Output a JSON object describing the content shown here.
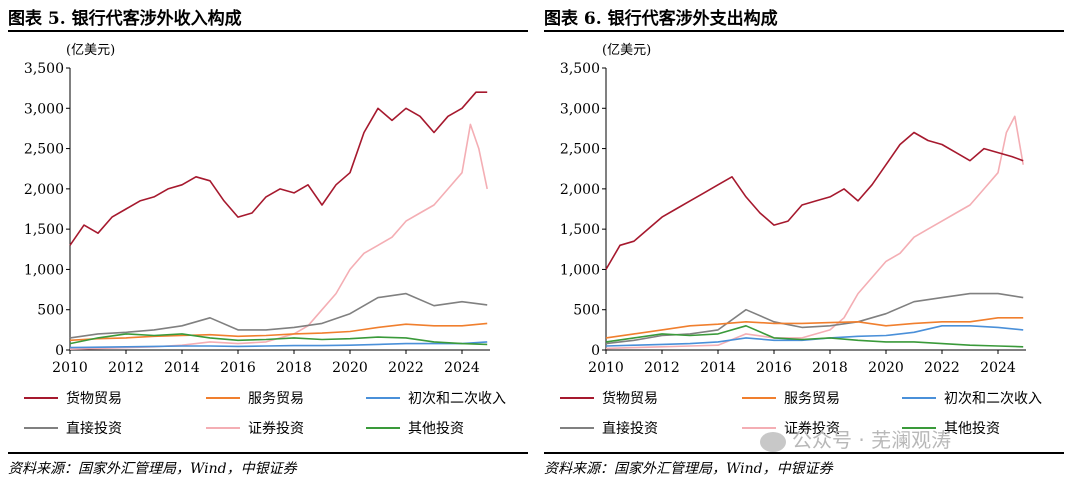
{
  "chart_data": [
    {
      "type": "line",
      "title": "图表 5. 银行代客涉外收入构成",
      "ylabel": "(亿美元)",
      "source": "资料来源：国家外汇管理局，Wind，中银证券",
      "ylim": [
        0,
        3500
      ],
      "xlim": [
        2010,
        2025
      ],
      "yticks": [
        {
          "v": 0,
          "label": "0"
        },
        {
          "v": 500,
          "label": "500"
        },
        {
          "v": 1000,
          "label": "1,000"
        },
        {
          "v": 1500,
          "label": "1,500"
        },
        {
          "v": 2000,
          "label": "2,000"
        },
        {
          "v": 2500,
          "label": "2,500"
        },
        {
          "v": 3000,
          "label": "3,000"
        },
        {
          "v": 3500,
          "label": "3,500"
        }
      ],
      "xticks": [
        2010,
        2012,
        2014,
        2016,
        2018,
        2020,
        2022,
        2024
      ],
      "legend_position": "bottom",
      "series": [
        {
          "name": "货物贸易",
          "color": "#A6192E",
          "x": [
            2010.0,
            2010.5,
            2011.0,
            2011.5,
            2012.0,
            2012.5,
            2013.0,
            2013.5,
            2014.0,
            2014.5,
            2015.0,
            2015.5,
            2016.0,
            2016.5,
            2017.0,
            2017.5,
            2018.0,
            2018.5,
            2019.0,
            2019.5,
            2020.0,
            2020.5,
            2021.0,
            2021.5,
            2022.0,
            2022.5,
            2023.0,
            2023.5,
            2024.0,
            2024.5,
            2024.9
          ],
          "y": [
            1300,
            1550,
            1450,
            1650,
            1750,
            1850,
            1900,
            2000,
            2050,
            2150,
            2100,
            1850,
            1650,
            1700,
            1900,
            2000,
            1950,
            2050,
            1800,
            2050,
            2200,
            2700,
            3000,
            2850,
            3000,
            2900,
            2700,
            2900,
            3000,
            3200,
            3200
          ]
        },
        {
          "name": "服务贸易",
          "color": "#F07F2E",
          "x": [
            2010.0,
            2011.0,
            2012.0,
            2013.0,
            2014.0,
            2015.0,
            2016.0,
            2017.0,
            2018.0,
            2019.0,
            2020.0,
            2021.0,
            2022.0,
            2023.0,
            2024.0,
            2024.9
          ],
          "y": [
            120,
            140,
            150,
            170,
            180,
            190,
            170,
            180,
            200,
            210,
            230,
            280,
            320,
            300,
            300,
            330
          ]
        },
        {
          "name": "初次和二次收入",
          "color": "#4A90D9",
          "x": [
            2010.0,
            2011.0,
            2012.0,
            2013.0,
            2014.0,
            2015.0,
            2016.0,
            2017.0,
            2018.0,
            2019.0,
            2020.0,
            2021.0,
            2022.0,
            2023.0,
            2024.0,
            2024.9
          ],
          "y": [
            30,
            35,
            40,
            45,
            50,
            50,
            45,
            50,
            55,
            55,
            60,
            70,
            80,
            80,
            80,
            100
          ]
        },
        {
          "name": "直接投资",
          "color": "#808080",
          "x": [
            2010.0,
            2011.0,
            2012.0,
            2013.0,
            2014.0,
            2015.0,
            2016.0,
            2017.0,
            2018.0,
            2019.0,
            2020.0,
            2021.0,
            2022.0,
            2023.0,
            2024.0,
            2024.9
          ],
          "y": [
            150,
            200,
            220,
            250,
            300,
            400,
            250,
            250,
            280,
            330,
            450,
            650,
            700,
            550,
            600,
            560
          ]
        },
        {
          "name": "证券投资",
          "color": "#F4AEB4",
          "x": [
            2010.0,
            2011.0,
            2012.0,
            2013.0,
            2014.0,
            2015.0,
            2016.0,
            2017.0,
            2018.0,
            2018.5,
            2019.0,
            2019.5,
            2020.0,
            2020.5,
            2021.0,
            2021.5,
            2022.0,
            2022.5,
            2023.0,
            2023.5,
            2024.0,
            2024.3,
            2024.6,
            2024.9
          ],
          "y": [
            10,
            20,
            30,
            40,
            60,
            100,
            80,
            100,
            200,
            300,
            500,
            700,
            1000,
            1200,
            1300,
            1400,
            1600,
            1700,
            1800,
            2000,
            2200,
            2800,
            2500,
            2000
          ]
        },
        {
          "name": "其他投资",
          "color": "#3A9A3A",
          "x": [
            2010.0,
            2011.0,
            2012.0,
            2013.0,
            2014.0,
            2015.0,
            2016.0,
            2017.0,
            2018.0,
            2019.0,
            2020.0,
            2021.0,
            2022.0,
            2023.0,
            2024.0,
            2024.9
          ],
          "y": [
            80,
            150,
            200,
            180,
            200,
            150,
            120,
            130,
            150,
            130,
            140,
            160,
            150,
            100,
            80,
            70
          ]
        }
      ]
    },
    {
      "type": "line",
      "title": "图表 6. 银行代客涉外支出构成",
      "ylabel": "(亿美元)",
      "source": "资料来源：国家外汇管理局，Wind，中银证券",
      "ylim": [
        0,
        3500
      ],
      "xlim": [
        2010,
        2025
      ],
      "yticks": [
        {
          "v": 0,
          "label": "0"
        },
        {
          "v": 500,
          "label": "500"
        },
        {
          "v": 1000,
          "label": "1,000"
        },
        {
          "v": 1500,
          "label": "1,500"
        },
        {
          "v": 2000,
          "label": "2,000"
        },
        {
          "v": 2500,
          "label": "2,500"
        },
        {
          "v": 3000,
          "label": "3,000"
        },
        {
          "v": 3500,
          "label": "3,500"
        }
      ],
      "xticks": [
        2010,
        2012,
        2014,
        2016,
        2018,
        2020,
        2022,
        2024
      ],
      "legend_position": "bottom",
      "series": [
        {
          "name": "货物贸易",
          "color": "#A6192E",
          "x": [
            2010.0,
            2010.5,
            2011.0,
            2011.5,
            2012.0,
            2012.5,
            2013.0,
            2013.5,
            2014.0,
            2014.5,
            2015.0,
            2015.5,
            2016.0,
            2016.5,
            2017.0,
            2017.5,
            2018.0,
            2018.5,
            2019.0,
            2019.5,
            2020.0,
            2020.5,
            2021.0,
            2021.5,
            2022.0,
            2022.5,
            2023.0,
            2023.5,
            2024.0,
            2024.5,
            2024.9
          ],
          "y": [
            1000,
            1300,
            1350,
            1500,
            1650,
            1750,
            1850,
            1950,
            2050,
            2150,
            1900,
            1700,
            1550,
            1600,
            1800,
            1850,
            1900,
            2000,
            1850,
            2050,
            2300,
            2550,
            2700,
            2600,
            2550,
            2450,
            2350,
            2500,
            2450,
            2400,
            2350
          ]
        },
        {
          "name": "服务贸易",
          "color": "#F07F2E",
          "x": [
            2010.0,
            2011.0,
            2012.0,
            2013.0,
            2014.0,
            2015.0,
            2016.0,
            2017.0,
            2018.0,
            2019.0,
            2020.0,
            2021.0,
            2022.0,
            2023.0,
            2024.0,
            2024.9
          ],
          "y": [
            150,
            200,
            250,
            300,
            320,
            350,
            330,
            330,
            340,
            350,
            300,
            330,
            350,
            350,
            400,
            400
          ]
        },
        {
          "name": "初次和二次收入",
          "color": "#4A90D9",
          "x": [
            2010.0,
            2011.0,
            2012.0,
            2013.0,
            2014.0,
            2015.0,
            2016.0,
            2017.0,
            2018.0,
            2019.0,
            2020.0,
            2021.0,
            2022.0,
            2023.0,
            2024.0,
            2024.9
          ],
          "y": [
            50,
            60,
            70,
            80,
            100,
            150,
            120,
            120,
            150,
            170,
            180,
            220,
            300,
            300,
            280,
            250
          ]
        },
        {
          "name": "直接投资",
          "color": "#808080",
          "x": [
            2010.0,
            2011.0,
            2012.0,
            2013.0,
            2014.0,
            2015.0,
            2016.0,
            2017.0,
            2018.0,
            2019.0,
            2020.0,
            2021.0,
            2022.0,
            2023.0,
            2024.0,
            2024.9
          ],
          "y": [
            80,
            120,
            180,
            200,
            250,
            500,
            350,
            280,
            300,
            350,
            450,
            600,
            650,
            700,
            700,
            650
          ]
        },
        {
          "name": "证券投资",
          "color": "#F4AEB4",
          "x": [
            2010.0,
            2011.0,
            2012.0,
            2013.0,
            2014.0,
            2015.0,
            2016.0,
            2017.0,
            2018.0,
            2018.5,
            2019.0,
            2019.5,
            2020.0,
            2020.5,
            2021.0,
            2021.5,
            2022.0,
            2022.5,
            2023.0,
            2023.5,
            2024.0,
            2024.3,
            2024.6,
            2024.9
          ],
          "y": [
            20,
            30,
            40,
            50,
            60,
            200,
            150,
            150,
            250,
            400,
            700,
            900,
            1100,
            1200,
            1400,
            1500,
            1600,
            1700,
            1800,
            2000,
            2200,
            2700,
            2900,
            2300
          ]
        },
        {
          "name": "其他投资",
          "color": "#3A9A3A",
          "x": [
            2010.0,
            2011.0,
            2012.0,
            2013.0,
            2014.0,
            2015.0,
            2016.0,
            2017.0,
            2018.0,
            2019.0,
            2020.0,
            2021.0,
            2022.0,
            2023.0,
            2024.0,
            2024.9
          ],
          "y": [
            100,
            150,
            200,
            180,
            200,
            300,
            150,
            130,
            150,
            120,
            100,
            100,
            80,
            60,
            50,
            40
          ]
        }
      ]
    }
  ],
  "watermark": "公众号 · 芜澜观涛"
}
